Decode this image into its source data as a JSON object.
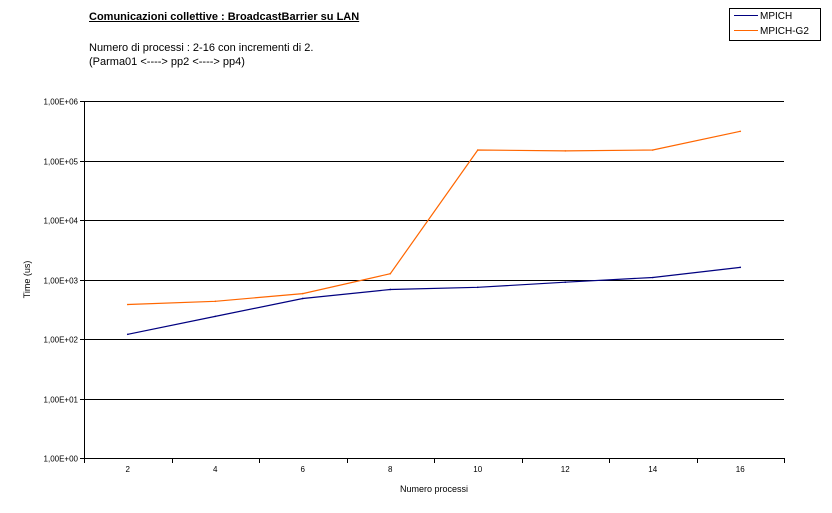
{
  "chart_data": {
    "type": "line",
    "title": "Comunicazioni collettive : BroadcastBarrier su LAN",
    "subtitle_lines": [
      "Numero di processi : 2-16 con incrementi di 2.",
      "(Parma01 <----> pp2 <----> pp4)"
    ],
    "xlabel": "Numero processi",
    "ylabel": "Time (us)",
    "y_scale": "log",
    "ylim": [
      1,
      1000000
    ],
    "y_ticks": [
      1,
      10,
      100,
      1000,
      10000,
      100000,
      1000000
    ],
    "y_tick_labels": [
      "1,00E+00",
      "1,00E+01",
      "1,00E+02",
      "1,00E+03",
      "1,00E+04",
      "1,00E+05",
      "1,00E+06"
    ],
    "categories": [
      "2",
      "4",
      "6",
      "8",
      "10",
      "12",
      "14",
      "16"
    ],
    "grid": true,
    "legend_position": "top-right",
    "series": [
      {
        "name": "MPICH",
        "color": "#000080",
        "values": [
          120,
          240,
          480,
          680,
          740,
          900,
          1080,
          1600
        ]
      },
      {
        "name": "MPICH-G2",
        "color": "#ff6600",
        "values": [
          380,
          430,
          580,
          1250,
          150000,
          145000,
          150000,
          310000
        ]
      }
    ]
  }
}
